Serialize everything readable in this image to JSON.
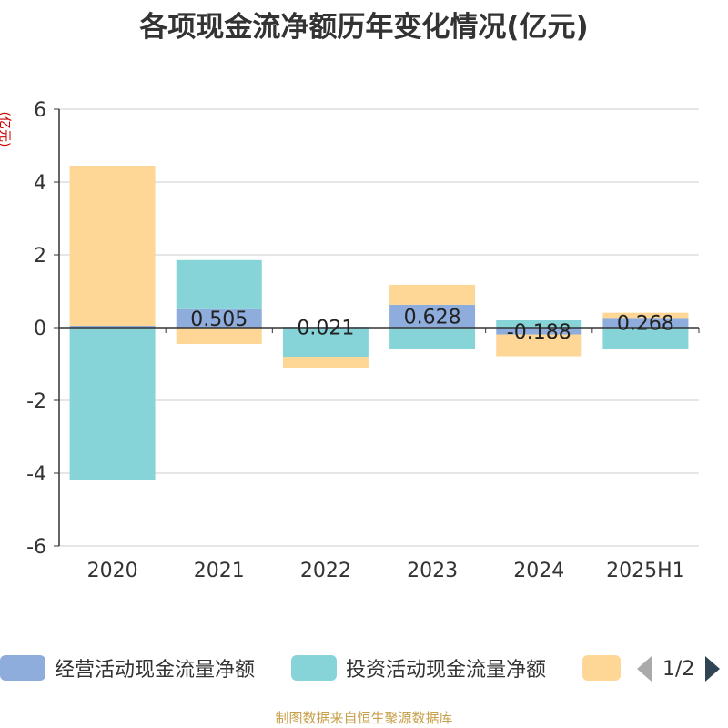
{
  "colors": {
    "operating": "#8eaddc",
    "investing": "#86d4d8",
    "financing": "#fed695",
    "axis": "#333333",
    "grid": "#cccccc"
  },
  "legend": {
    "items": [
      "经营活动现金流量净额",
      "投资活动现金流量净额",
      ""
    ],
    "page": "1/2"
  },
  "footer": "制图数据来自恒生聚源数据库",
  "chart_data": {
    "type": "bar",
    "stacked": true,
    "title": "各项现金流净额历年变化情况(亿元)",
    "ylabel": "(亿元)",
    "categories": [
      "2020",
      "2021",
      "2022",
      "2023",
      "2024",
      "2025H1"
    ],
    "yticks": [
      6,
      4,
      2,
      0,
      -2,
      -4,
      -6
    ],
    "ylim": [
      -6,
      6
    ],
    "grid": true,
    "legend_position": "bottom",
    "series": [
      {
        "name": "经营活动现金流量净额",
        "values": [
          0.05,
          0.505,
          0.021,
          0.628,
          -0.188,
          0.268
        ],
        "labels": [
          "",
          "0.505",
          "0.021",
          "0.628",
          "-0.188",
          "0.268"
        ]
      },
      {
        "name": "投资活动现金流量净额",
        "values": [
          -4.2,
          1.35,
          -0.8,
          -0.6,
          0.2,
          -0.6
        ]
      },
      {
        "name": "",
        "values": [
          4.4,
          -0.45,
          -0.3,
          0.55,
          -0.6,
          0.14
        ]
      }
    ]
  }
}
